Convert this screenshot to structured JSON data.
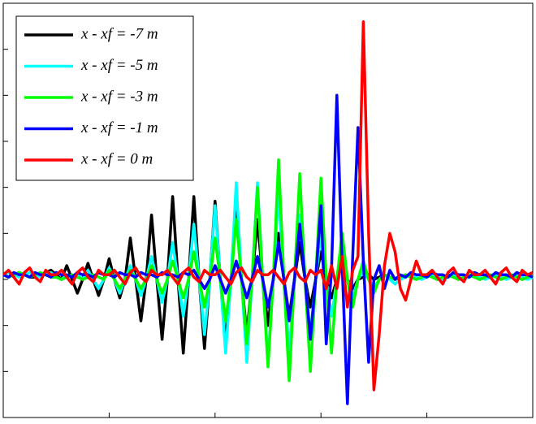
{
  "chart_data": {
    "type": "line",
    "x": [
      0,
      0.05,
      0.1,
      0.15,
      0.2,
      0.25,
      0.3,
      0.35,
      0.4,
      0.45,
      0.5,
      0.55,
      0.6,
      0.65,
      0.7,
      0.75,
      0.8,
      0.85,
      0.9,
      0.95,
      1,
      1.05,
      1.1,
      1.15,
      1.2,
      1.25,
      1.3,
      1.35,
      1.4,
      1.45,
      1.5,
      1.55,
      1.6,
      1.65,
      1.7,
      1.75,
      1.8,
      1.85,
      1.9,
      1.95,
      2,
      2.05,
      2.1,
      2.15,
      2.2,
      2.25,
      2.3,
      2.35,
      2.4,
      2.45,
      2.5,
      2.55,
      2.6,
      2.65,
      2.7,
      2.75,
      2.8,
      2.85,
      2.9,
      2.95,
      3,
      3.05,
      3.1,
      3.15,
      3.2,
      3.25,
      3.3,
      3.35,
      3.4,
      3.45,
      3.5,
      3.55,
      3.6,
      3.65,
      3.7,
      3.75,
      3.8,
      3.85,
      3.9,
      3.95,
      4,
      4.05,
      4.1,
      4.15,
      4.2,
      4.25,
      4.3,
      4.35,
      4.4,
      4.45,
      4.5,
      4.55,
      4.6,
      4.65,
      4.7,
      4.75,
      4.8,
      4.85,
      4.9,
      4.95,
      5
    ],
    "series": [
      {
        "name": "x - xf = -7 m",
        "color": "#000000",
        "values": [
          0.1,
          0.05,
          0.1,
          0.15,
          0.1,
          0.05,
          0.05,
          0.1,
          0.15,
          0.2,
          0.1,
          0,
          0.3,
          0,
          -0.3,
          0,
          0.35,
          0,
          -0.35,
          0,
          0.45,
          0,
          -0.4,
          0,
          0.9,
          0,
          -0.9,
          0,
          1.4,
          0,
          -1.3,
          0,
          1.8,
          0,
          -1.6,
          0,
          1.8,
          0,
          -1.5,
          0,
          1.7,
          0,
          -1.4,
          0,
          1.5,
          0,
          -1.2,
          0,
          1.3,
          0,
          -1,
          0,
          1,
          0,
          -0.8,
          0,
          0.8,
          0,
          -0.6,
          0,
          0.6,
          0,
          -0.4,
          0,
          0.3,
          0,
          -0.2,
          0,
          0.05,
          0.1,
          0,
          0.05,
          0.1,
          0.05,
          0,
          0.05,
          0.1,
          0.05,
          0,
          0.05,
          0.1,
          0.05,
          0,
          0.05,
          0.1,
          0.05,
          0,
          0.05,
          0.1,
          0.05,
          0,
          0.05,
          0.1,
          0.05,
          0,
          0.05,
          0.1,
          0.05,
          0,
          0.05,
          0.1
        ]
      },
      {
        "name": "x - xf = -5 m",
        "color": "#00ffff",
        "values": [
          0.1,
          0.15,
          0.1,
          0.05,
          0.1,
          0.15,
          0.1,
          0.05,
          0.1,
          0.15,
          0.05,
          0,
          0.1,
          0.05,
          0.1,
          0,
          0.2,
          0,
          -0.2,
          0,
          0.25,
          0,
          -0.3,
          0,
          0.3,
          0,
          -0.35,
          0,
          0.5,
          0,
          -0.5,
          0,
          0.8,
          0,
          -0.8,
          0,
          1.2,
          0,
          -1.2,
          0,
          1.6,
          0,
          -1.6,
          0,
          2.1,
          0,
          -1.8,
          0,
          2.1,
          0,
          -1.8,
          0,
          1.9,
          0,
          -1.6,
          0,
          1.4,
          0,
          -1.2,
          0,
          1,
          0,
          -0.8,
          0,
          0.6,
          0,
          -0.4,
          0,
          0.2,
          0,
          -0.2,
          0,
          0.1,
          0,
          -0.1,
          0,
          0.05,
          0.1,
          0.05,
          0,
          0.05,
          0.1,
          0.05,
          0,
          0.05,
          0.1,
          0.05,
          0,
          0.05,
          0.1,
          0.05,
          0,
          0.05,
          0.1,
          0.05,
          0,
          0.05,
          0.1,
          0.05,
          0,
          0.05
        ]
      },
      {
        "name": "x - xf = -3 m",
        "color": "#00ff00",
        "values": [
          0.1,
          0.05,
          0.1,
          0.15,
          0.1,
          0.05,
          0.1,
          0.15,
          0.1,
          0.05,
          0.05,
          0,
          0.05,
          0.1,
          0.05,
          0,
          0.05,
          0.1,
          0.05,
          0,
          0.2,
          0,
          -0.2,
          0,
          0.2,
          0,
          -0.2,
          0,
          0.3,
          0,
          -0.3,
          0,
          0.4,
          0,
          -0.4,
          0,
          0.6,
          0,
          -0.6,
          0,
          0.9,
          0,
          -0.9,
          0,
          1.3,
          0,
          -1.4,
          0,
          2,
          0,
          -1.9,
          0,
          2.6,
          0,
          -2.2,
          0,
          2.3,
          0,
          -2,
          0,
          2.2,
          0,
          -1.6,
          0,
          1,
          0,
          -0.6,
          0,
          0.4,
          0,
          -0.3,
          0,
          0.1,
          0.05,
          0,
          0.05,
          0.1,
          0.05,
          0,
          0.05,
          0.1,
          0.05,
          0,
          0.05,
          0.1,
          0.05,
          0,
          0.05,
          0.1,
          0.05,
          0,
          0.05,
          0.1,
          0.05,
          0,
          0.05,
          0.1,
          0.05,
          0,
          0.05,
          0.1
        ]
      },
      {
        "name": "x - xf = -1 m",
        "color": "#0000ff",
        "values": [
          0.1,
          0.05,
          0.15,
          0.1,
          0.1,
          0.05,
          0.15,
          0.1,
          0.1,
          0.05,
          0.15,
          0.1,
          0.1,
          0.05,
          0.15,
          0.1,
          0.1,
          0.05,
          0.15,
          0.1,
          0.1,
          0.05,
          0.15,
          0.1,
          0.1,
          0.05,
          0.15,
          0.1,
          0.1,
          0.05,
          0.15,
          0.1,
          0.1,
          0.05,
          0.15,
          0.1,
          0.2,
          0,
          -0.2,
          0,
          0.3,
          0,
          -0.3,
          0,
          0.4,
          0,
          -0.4,
          0,
          0.5,
          0,
          -0.6,
          0,
          0.8,
          0,
          -0.9,
          0,
          1.2,
          0,
          -1.3,
          0,
          1.6,
          -1.4,
          0.2,
          4,
          0.3,
          -2.7,
          0.5,
          3.3,
          0.4,
          -1.8,
          0,
          0.3,
          -0.2,
          0.2,
          0,
          0.1,
          0.05,
          0.15,
          0.1,
          0.1,
          0.05,
          0.15,
          0.1,
          0.1,
          0.05,
          0.15,
          0.1,
          0.1,
          0.05,
          0.15,
          0.1,
          0.1,
          0.05,
          0.15,
          0.1,
          0.1,
          0.05,
          0.15,
          0.1,
          0.1,
          0.05
        ]
      },
      {
        "name": "x - xf = 0 m",
        "color": "#ff0000",
        "values": [
          0.1,
          0.2,
          0.05,
          -0.1,
          0.15,
          0.25,
          0.05,
          -0.05,
          0.2,
          0.1,
          0.1,
          0.2,
          0.05,
          -0.1,
          0.15,
          0.25,
          0.05,
          -0.05,
          0.2,
          0.1,
          0.1,
          0.2,
          0.05,
          -0.1,
          0.15,
          0.25,
          0.05,
          -0.05,
          0.2,
          0.1,
          0.1,
          0.2,
          0.05,
          -0.1,
          0.15,
          0.25,
          0.05,
          -0.05,
          0.2,
          0.1,
          0.1,
          0.2,
          0.05,
          -0.1,
          0.15,
          0.25,
          0.05,
          -0.05,
          0.2,
          0.1,
          0.1,
          0.2,
          0.05,
          -0.1,
          0.15,
          0.25,
          0.05,
          -0.05,
          0.2,
          0.1,
          0.2,
          -0.2,
          0.3,
          -0.2,
          0.5,
          -0.6,
          0.2,
          0.5,
          5.6,
          1,
          -2.4,
          -1.2,
          0.3,
          1,
          0.6,
          -0.2,
          -0.45,
          0,
          0.4,
          0.1,
          0.1,
          0.2,
          0.05,
          -0.1,
          0.15,
          0.25,
          0.05,
          -0.05,
          0.2,
          0.1,
          0.1,
          0.2,
          0.05,
          -0.1,
          0.15,
          0.25,
          0.05,
          -0.05,
          0.2,
          0.1,
          0.15
        ]
      }
    ],
    "xlim": [
      0,
      5
    ],
    "xticks": [
      1,
      2,
      3,
      4
    ],
    "ylim": [
      -3,
      6
    ],
    "yticks": [
      -2,
      -1,
      0,
      1,
      2,
      3,
      4,
      5
    ],
    "legend": "upper left"
  }
}
